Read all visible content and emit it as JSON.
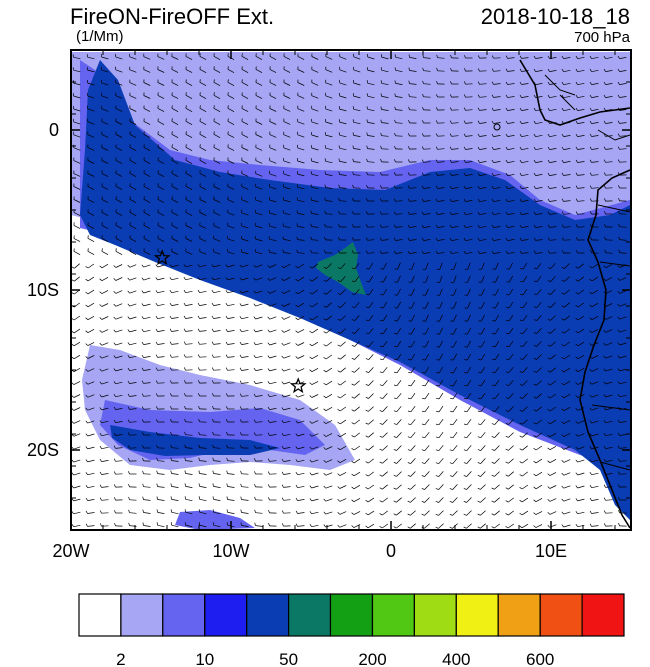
{
  "header": {
    "title": "FireON-FireOFF Ext.",
    "datetime": "2018-10-18_18",
    "units": "(1/Mm)",
    "level": "700 hPa"
  },
  "map": {
    "lon_range": [
      -20,
      15
    ],
    "lat_range": [
      -25,
      5
    ],
    "lon_ticks": [
      {
        "value": -20,
        "label": "20W"
      },
      {
        "value": -10,
        "label": "10W"
      },
      {
        "value": 0,
        "label": "0"
      },
      {
        "value": 10,
        "label": "10E"
      }
    ],
    "lat_ticks": [
      {
        "value": 0,
        "label": "0"
      },
      {
        "value": -10,
        "label": "10S"
      },
      {
        "value": -20,
        "label": "20S"
      }
    ],
    "markers": [
      {
        "name": "star-marker",
        "lon": -14.3,
        "lat": -8.0
      },
      {
        "name": "star-marker",
        "lon": -5.8,
        "lat": -16.0
      }
    ]
  },
  "colorbar": {
    "colors": [
      "#ffffff",
      "#a6a6f5",
      "#6464f0",
      "#1e1ef0",
      "#0a3cb4",
      "#0a7864",
      "#14a014",
      "#50c814",
      "#a0dc14",
      "#f0f014",
      "#f0a014",
      "#f05014",
      "#f01414"
    ],
    "labels": [
      {
        "index": 1,
        "text": "2"
      },
      {
        "index": 3,
        "text": "10"
      },
      {
        "index": 5,
        "text": "50"
      },
      {
        "index": 7,
        "text": "200"
      },
      {
        "index": 9,
        "text": "400"
      },
      {
        "index": 11,
        "text": "600"
      }
    ]
  }
}
